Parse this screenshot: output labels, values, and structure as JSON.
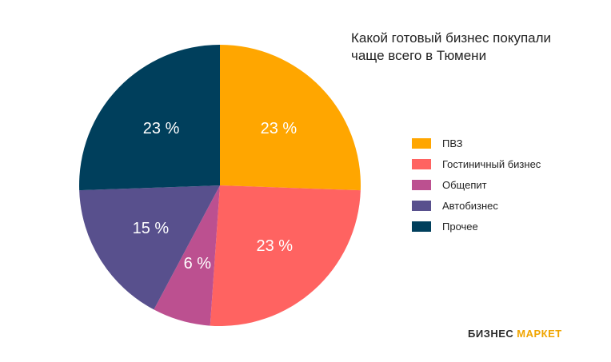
{
  "chart_data": {
    "type": "pie",
    "title": "Какой готовый бизнес покупали чаще всего в Тюмени",
    "title_lines": [
      "Какой готовый бизнес покупали",
      "чаще всего в Тюмени"
    ],
    "legend_position": "right",
    "slices": [
      {
        "label": "ПВЗ",
        "value": 23,
        "display": "23 %",
        "color": "#FFA600"
      },
      {
        "label": "Гостиничный бизнес",
        "value": 23,
        "display": "23 %",
        "color": "#FF6361"
      },
      {
        "label": "Общепит",
        "value": 6,
        "display": "6 %",
        "color": "#BC5090"
      },
      {
        "label": "Автобизнес",
        "value": 15,
        "display": "15 %",
        "color": "#58508D"
      },
      {
        "label": "Прочее",
        "value": 23,
        "display": "23 %",
        "color": "#003F5C"
      }
    ]
  },
  "brand": {
    "part1": "БИЗНЕС",
    "part2": "МАРКЕТ"
  }
}
